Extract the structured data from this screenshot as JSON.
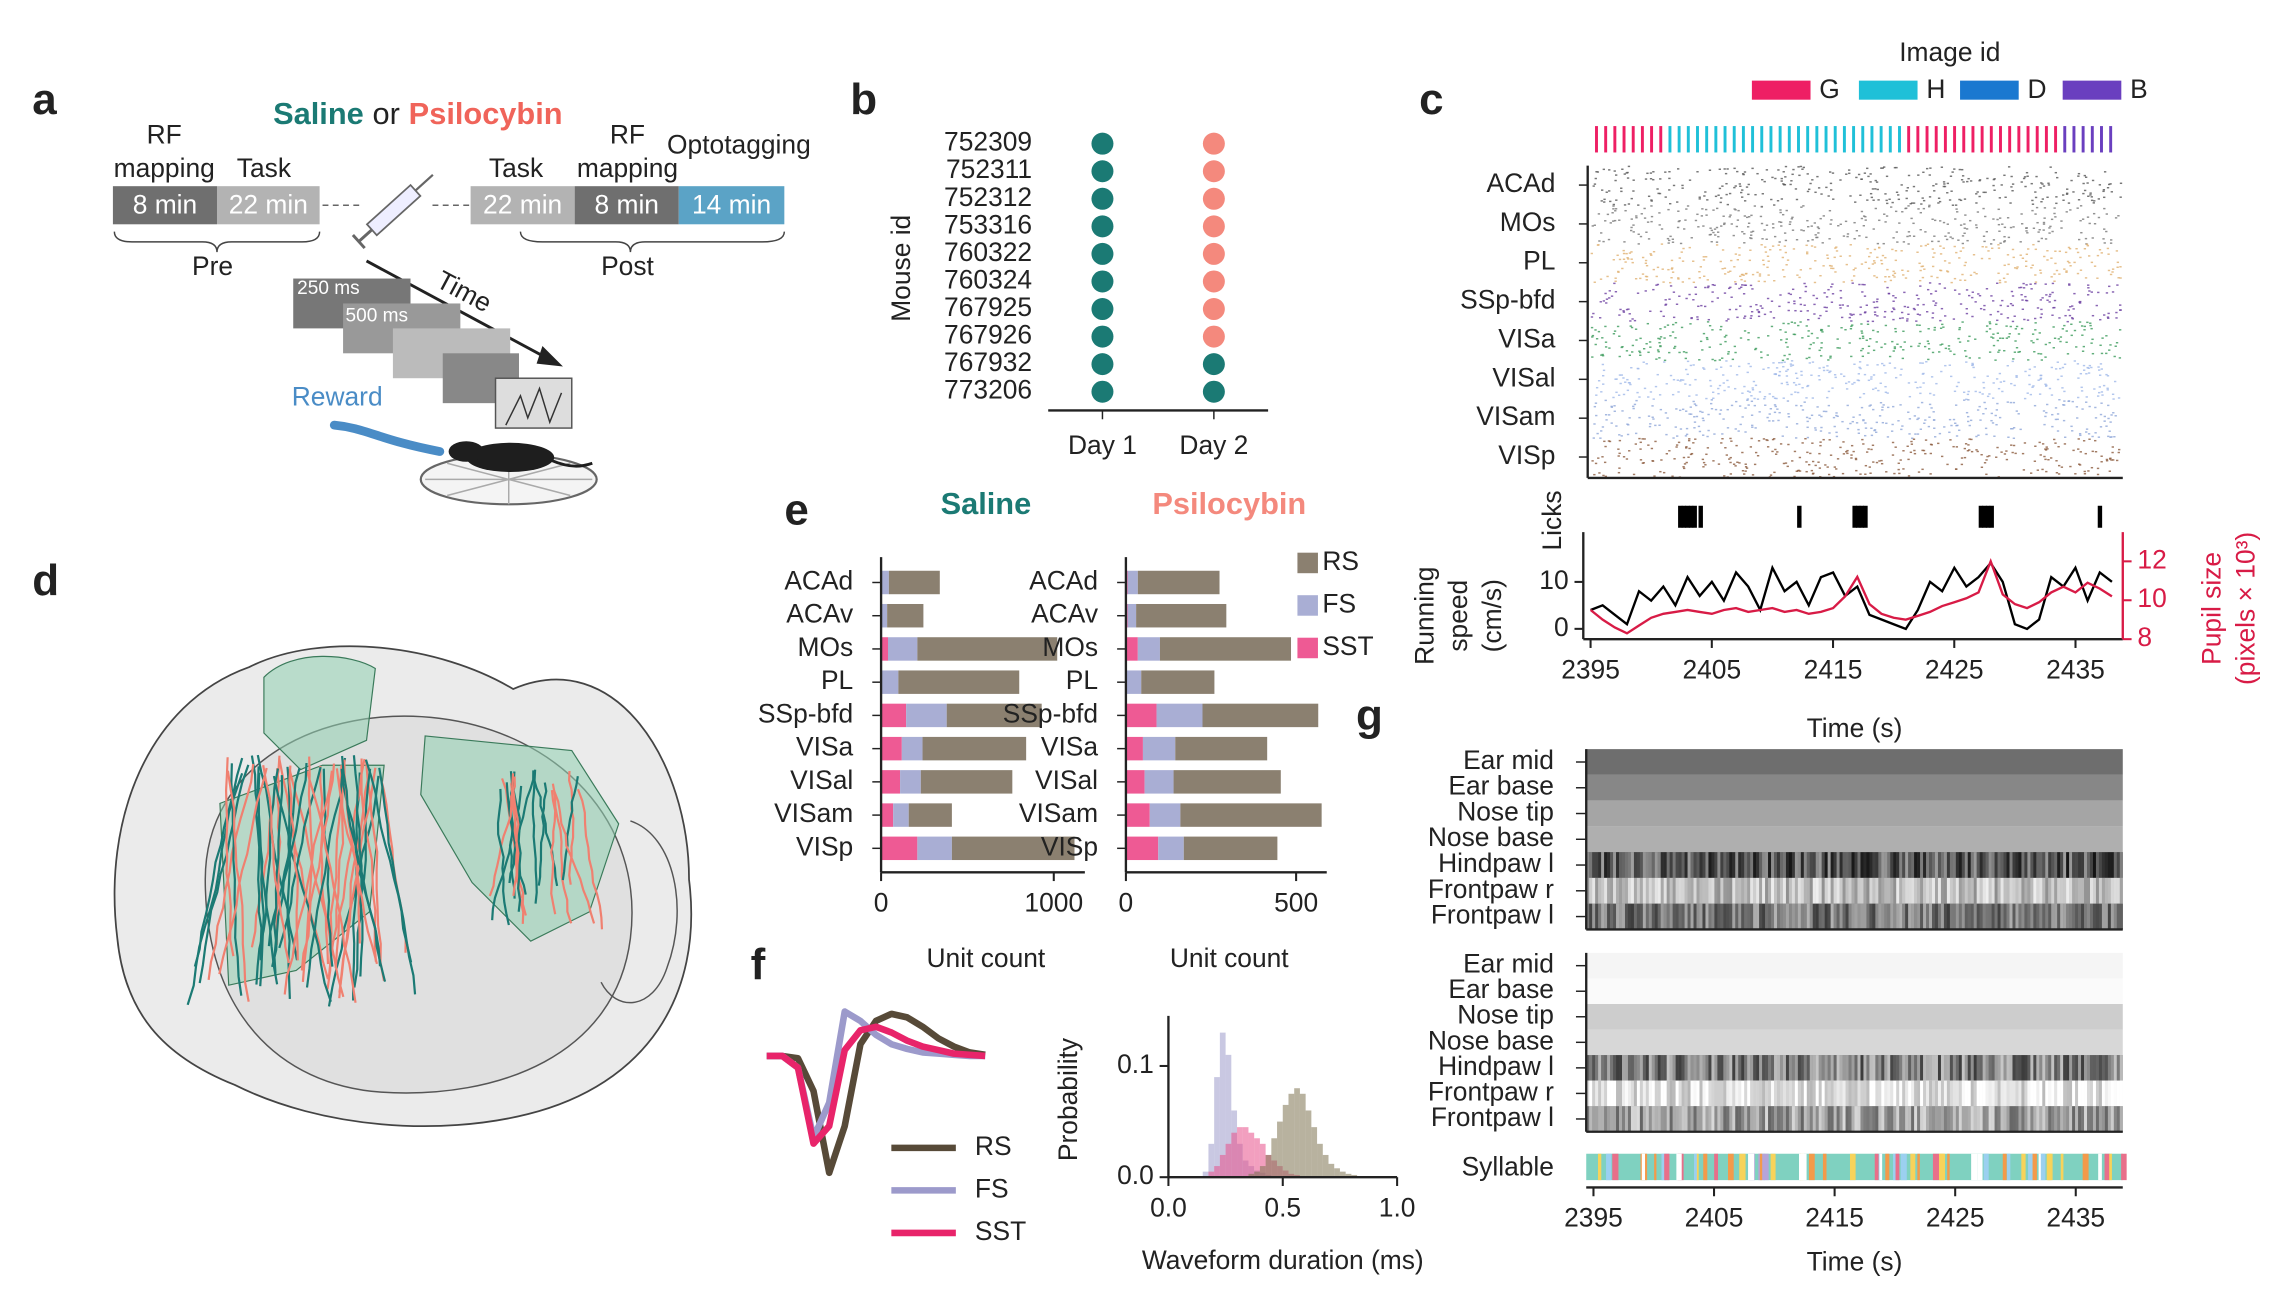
{
  "panel_labels": [
    "a",
    "b",
    "c",
    "d",
    "e",
    "f",
    "g"
  ],
  "panel_a": {
    "saline": "Saline",
    "or": "or",
    "psilocybin": "Psilocybin",
    "blocks": [
      {
        "header": [
          "RF",
          "mapping"
        ],
        "duration": "8 min",
        "color": "#6f6f6f"
      },
      {
        "header": [
          "Task"
        ],
        "duration": "22 min",
        "color": "#b3b3b3"
      },
      {
        "header": [
          "Task"
        ],
        "duration": "22 min",
        "color": "#b3b3b3"
      },
      {
        "header": [
          "RF",
          "mapping"
        ],
        "duration": "8 min",
        "color": "#6f6f6f"
      },
      {
        "header": [
          "Optotagging"
        ],
        "duration": "14 min",
        "color": "#5ba3c6"
      }
    ],
    "pre": "Pre",
    "post": "Post",
    "time": "Time",
    "flash_on": "250 ms",
    "flash_off": "500 ms",
    "reward": "Reward"
  },
  "chart_data": [
    {
      "type": "dot-grid",
      "ylabel": "Mouse id",
      "categories": [
        "752309",
        "752311",
        "752312",
        "753316",
        "760322",
        "760324",
        "767925",
        "767926",
        "767932",
        "773206"
      ],
      "x_categories": [
        "Day 1",
        "Day 2"
      ],
      "colors": [
        [
          "#1b7a74",
          "#1b7a74",
          "#1b7a74",
          "#1b7a74",
          "#1b7a74",
          "#1b7a74",
          "#1b7a74",
          "#1b7a74",
          "#1b7a74",
          "#1b7a74"
        ],
        [
          "#f4897d",
          "#f4897d",
          "#f4897d",
          "#f4897d",
          "#f4897d",
          "#f4897d",
          "#f4897d",
          "#f4897d",
          "#1b7a74",
          "#1b7a74"
        ]
      ]
    },
    {
      "type": "stacked-hbar",
      "title": "Saline",
      "title_color": "#1b7a74",
      "xlabel": "Unit count",
      "categories": [
        "ACAd",
        "ACAv",
        "MOs",
        "PL",
        "SSp-bfd",
        "VISa",
        "VISal",
        "VISam",
        "VISp"
      ],
      "series": [
        {
          "name": "SST",
          "color": "#ee5a94",
          "values": [
            5,
            5,
            40,
            0,
            145,
            120,
            110,
            70,
            210
          ]
        },
        {
          "name": "FS",
          "color": "#a9aed4",
          "values": [
            40,
            30,
            170,
            100,
            235,
            120,
            120,
            90,
            200
          ]
        },
        {
          "name": "RS",
          "color": "#8b8070",
          "values": [
            295,
            210,
            810,
            700,
            550,
            600,
            530,
            250,
            710
          ]
        }
      ],
      "xlim": [
        0,
        1180
      ],
      "xticks": [
        0,
        1000
      ]
    },
    {
      "type": "stacked-hbar",
      "title": "Psilocybin",
      "title_color": "#f4897d",
      "xlabel": "Unit count",
      "legend": "upper right",
      "categories": [
        "ACAd",
        "ACAv",
        "MOs",
        "PL",
        "SSp-bfd",
        "VISa",
        "VISal",
        "VISam",
        "VISp"
      ],
      "series": [
        {
          "name": "SST",
          "color": "#ee5a94",
          "values": [
            5,
            5,
            35,
            0,
            90,
            50,
            55,
            70,
            95
          ]
        },
        {
          "name": "FS",
          "color": "#a9aed4",
          "values": [
            30,
            25,
            65,
            45,
            135,
            95,
            85,
            90,
            75
          ]
        },
        {
          "name": "RS",
          "color": "#8b8070",
          "values": [
            240,
            265,
            385,
            215,
            340,
            270,
            315,
            415,
            275
          ]
        }
      ],
      "xlim": [
        0,
        590
      ],
      "xticks": [
        0,
        500
      ]
    },
    {
      "type": "line",
      "legend": "lower right",
      "series": [
        {
          "name": "RS",
          "color": "#574a38",
          "values": [
            0,
            0,
            -0.02,
            -0.3,
            -1.0,
            -0.6,
            0.1,
            0.3,
            0.36,
            0.33,
            0.25,
            0.15,
            0.08,
            0.03,
            0.01
          ]
        },
        {
          "name": "FS",
          "color": "#9c9acb",
          "values": [
            0,
            0,
            -0.1,
            -0.7,
            -0.4,
            0.38,
            0.3,
            0.18,
            0.1,
            0.06,
            0.03,
            0.02,
            0.01,
            0,
            0
          ]
        },
        {
          "name": "SST",
          "color": "#e8246a",
          "values": [
            0,
            0,
            -0.1,
            -0.75,
            -0.6,
            0.05,
            0.22,
            0.25,
            0.2,
            0.13,
            0.08,
            0.05,
            0.02,
            0.01,
            0
          ]
        }
      ]
    },
    {
      "type": "histogram",
      "xlabel": "Waveform duration (ms)",
      "ylabel": "Probability",
      "bins": [
        0.15,
        0.175,
        0.2,
        0.225,
        0.25,
        0.275,
        0.3,
        0.325,
        0.35,
        0.375,
        0.4,
        0.425,
        0.45,
        0.475,
        0.5,
        0.525,
        0.55,
        0.575,
        0.6,
        0.625,
        0.65,
        0.675,
        0.7,
        0.725,
        0.75,
        0.775,
        0.8,
        0.825,
        0.85,
        0.875,
        0.9,
        0.925,
        0.95
      ],
      "series": [
        {
          "name": "FS",
          "color": "#9c9acb",
          "values": [
            0.005,
            0.03,
            0.09,
            0.13,
            0.11,
            0.06,
            0.03,
            0.015,
            0.01,
            0.006,
            0.004,
            0.002,
            0.001,
            0,
            0,
            0,
            0,
            0,
            0,
            0,
            0,
            0,
            0,
            0,
            0,
            0,
            0,
            0,
            0,
            0,
            0,
            0
          ]
        },
        {
          "name": "SST",
          "color": "#e8508a",
          "values": [
            0,
            0.005,
            0.01,
            0.02,
            0.03,
            0.04,
            0.045,
            0.045,
            0.04,
            0.035,
            0.03,
            0.02,
            0.015,
            0.01,
            0.006,
            0.003,
            0.002,
            0.001,
            0,
            0,
            0,
            0,
            0,
            0,
            0,
            0,
            0,
            0,
            0,
            0,
            0,
            0
          ]
        },
        {
          "name": "RS",
          "color": "#7d7350",
          "values": [
            0,
            0,
            0,
            0,
            0,
            0,
            0,
            0,
            0.003,
            0.005,
            0.01,
            0.02,
            0.035,
            0.05,
            0.065,
            0.075,
            0.08,
            0.075,
            0.06,
            0.045,
            0.03,
            0.02,
            0.012,
            0.008,
            0.005,
            0.003,
            0.002,
            0.001,
            0,
            0,
            0,
            0
          ]
        }
      ],
      "xlim": [
        0,
        1.0
      ],
      "xticks": [
        {
          "value": 0,
          "label": "0.0"
        },
        {
          "value": 0.5,
          "label": "0.5"
        },
        {
          "value": 1.0,
          "label": "1.0"
        }
      ],
      "ylim": [
        0,
        0.145
      ],
      "yticks": [
        {
          "value": 0,
          "label": "0.0"
        },
        0.1
      ]
    },
    {
      "type": "image-strip",
      "legend_title": "Image id",
      "categories": [
        "G",
        "H",
        "D",
        "B"
      ],
      "colors": [
        "#ee1f64",
        "#1fc0d8",
        "#1a78d0",
        "#6a3fbf"
      ],
      "sequence": [
        "G",
        "G",
        "G",
        "G",
        "G",
        "G",
        "G",
        "G",
        "H",
        "H",
        "H",
        "H",
        "H",
        "H",
        "H",
        "H",
        "H",
        "H",
        "H",
        "H",
        "H",
        "H",
        "H",
        "H",
        "H",
        "H",
        "H",
        "H",
        "H",
        "H",
        "H",
        "H",
        "H",
        "H",
        "G",
        "G",
        "G",
        "G",
        "G",
        "G",
        "G",
        "G",
        "G",
        "G",
        "G",
        "G",
        "G",
        "G",
        "G",
        "G",
        "G",
        "B",
        "B",
        "B",
        "B",
        "B",
        "B"
      ]
    },
    {
      "type": "raster",
      "categories": [
        "ACAd",
        "MOs",
        "PL",
        "SSp-bfd",
        "VISa",
        "VISal",
        "VISam",
        "VISp"
      ],
      "colors": [
        "#555555",
        "#777777",
        "#e0b070",
        "#6b3fa0",
        "#3a9a5a",
        "#9fb8e8",
        "#8ea6d8",
        "#8b5a3c"
      ]
    },
    {
      "type": "events",
      "ylabel": "Licks",
      "xlim": [
        2394.4,
        2438.9
      ],
      "x": [
        2402.1,
        2402.4,
        2402.7,
        2403.0,
        2403.3,
        2403.8,
        2412.0,
        2416.6,
        2416.9,
        2417.2,
        2417.5,
        2427.1,
        2427.4,
        2427.7,
        2428.0,
        2437.0
      ]
    },
    {
      "type": "line",
      "xlabel": "Time (s)",
      "ylabel": [
        "Running",
        "speed",
        "(cm/s)"
      ],
      "y2label": [
        "Pupil size",
        "(pixels × 10³)"
      ],
      "x": [
        2395,
        2396,
        2397,
        2398,
        2399,
        2400,
        2401,
        2402,
        2403,
        2404,
        2405,
        2406,
        2407,
        2408,
        2409,
        2410,
        2411,
        2412,
        2413,
        2414,
        2415,
        2416,
        2417,
        2418,
        2419,
        2420,
        2421,
        2422,
        2423,
        2424,
        2425,
        2426,
        2427,
        2428,
        2429,
        2430,
        2431,
        2432,
        2433,
        2434,
        2435,
        2436,
        2437,
        2438
      ],
      "series": [
        {
          "color": "#000000",
          "values": [
            4,
            5,
            3,
            1,
            8,
            6,
            9,
            5,
            11,
            7,
            10,
            6,
            12,
            9,
            4,
            13,
            8,
            10,
            5,
            11,
            12,
            7,
            9,
            3,
            2,
            1,
            0,
            4,
            10,
            8,
            13,
            9,
            11,
            14,
            10,
            1,
            0,
            2,
            11,
            9,
            13,
            6,
            12,
            10
          ]
        },
        {
          "color": "#d81b46",
          "axis": "y2",
          "values": [
            9.5,
            9.0,
            8.6,
            8.3,
            8.7,
            9.1,
            9.3,
            9.4,
            9.5,
            9.4,
            9.3,
            9.5,
            9.6,
            9.4,
            9.5,
            9.6,
            9.4,
            9.5,
            9.3,
            9.4,
            9.6,
            10.2,
            11.2,
            9.8,
            9.3,
            9.1,
            9.0,
            9.2,
            9.4,
            9.7,
            9.9,
            10.1,
            10.4,
            12.0,
            10.3,
            9.8,
            9.6,
            9.9,
            10.4,
            10.7,
            10.4,
            10.9,
            10.6,
            10.2
          ]
        }
      ],
      "xlim": [
        2394.4,
        2438.9
      ],
      "xticks": [
        2395,
        2405,
        2415,
        2425,
        2435
      ],
      "ylim": [
        -2.2,
        20.6
      ],
      "yticks": [
        0,
        10
      ],
      "y2lim": [
        8,
        13.5
      ],
      "y2ticks": [
        8,
        10,
        12
      ],
      "y2color": "#d81b46"
    },
    {
      "type": "heatmaps",
      "xlabel": "Time (s)",
      "syllable_label": "Syllable",
      "rows_top": [
        "Ear mid",
        "Ear base",
        "Nose tip",
        "Nose base",
        "Hindpaw l",
        "Frontpaw r",
        "Frontpaw l"
      ],
      "rows_bottom": [
        "Ear mid",
        "Ear base",
        "Nose tip",
        "Nose base",
        "Hindpaw l",
        "Frontpaw r",
        "Frontpaw l"
      ],
      "xlim": [
        2394.4,
        2438.9
      ],
      "xticks": [
        2395,
        2405,
        2415,
        2425,
        2435
      ]
    }
  ]
}
